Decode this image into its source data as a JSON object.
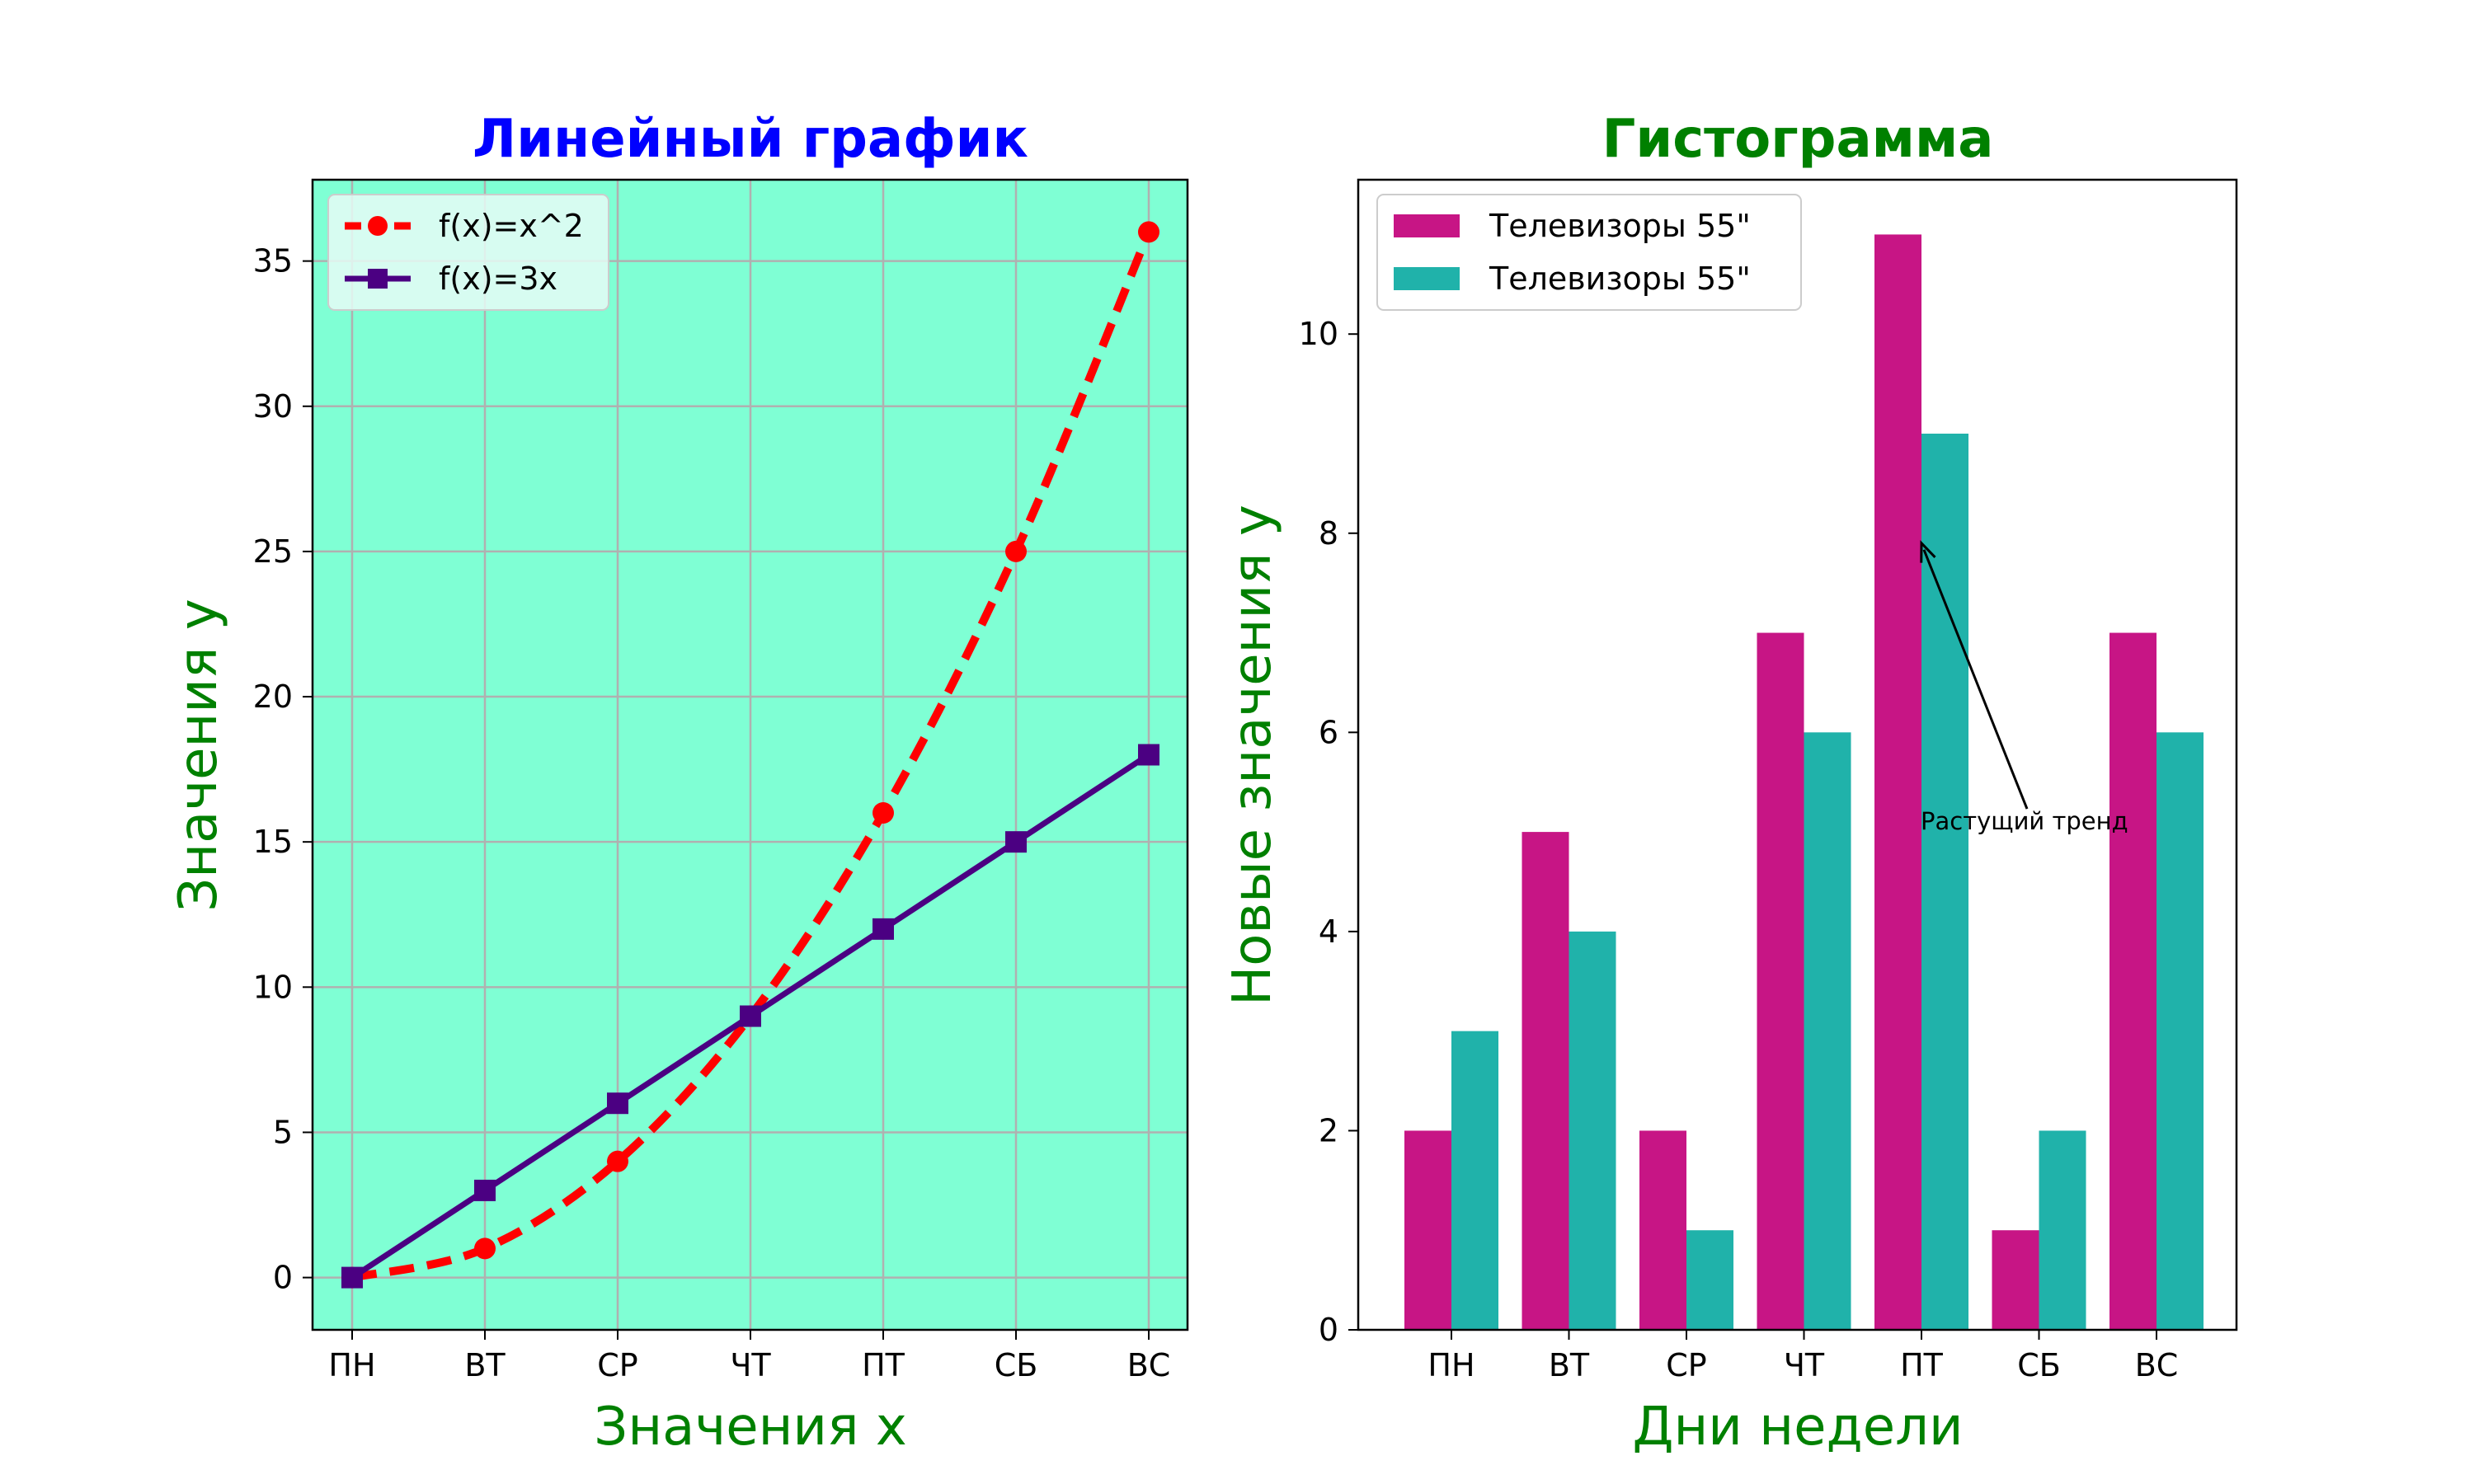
{
  "chart_data": [
    {
      "type": "line",
      "title": "Линейный график",
      "title_color": "#0000ff",
      "xlabel": "Значения x",
      "ylabel": "Значения y",
      "label_color": "#008000",
      "background": "#7fffd4",
      "grid": true,
      "legend_position": "top-left",
      "categories": [
        "ПН",
        "ВТ",
        "СР",
        "ЧТ",
        "ПТ",
        "СБ",
        "ВС"
      ],
      "ylim": [
        -1.8,
        37.8
      ],
      "yticks": [
        0,
        5,
        10,
        15,
        20,
        25,
        30,
        35
      ],
      "series": [
        {
          "name": "f(x)=x^2",
          "values": [
            0,
            1,
            4,
            9,
            16,
            25,
            36
          ],
          "color": "#ff0000",
          "style": "dashed",
          "marker": "circle"
        },
        {
          "name": "f(x)=3x",
          "values": [
            0,
            3,
            6,
            9,
            12,
            15,
            18
          ],
          "color": "#4b0082",
          "style": "solid",
          "marker": "square"
        }
      ]
    },
    {
      "type": "bar",
      "title": "Гистограмма",
      "title_color": "#008000",
      "xlabel": "Дни недели",
      "ylabel": "Новые значения y",
      "label_color": "#008000",
      "grid": false,
      "legend_position": "top-left",
      "categories": [
        "ПН",
        "ВТ",
        "СР",
        "ЧТ",
        "ПТ",
        "СБ",
        "ВС"
      ],
      "ylim": [
        0,
        11.55
      ],
      "yticks": [
        0,
        2,
        4,
        6,
        8,
        10
      ],
      "series": [
        {
          "name": "Телевизоры 55\"",
          "values": [
            2,
            5,
            2,
            7,
            11,
            1,
            7
          ],
          "color": "#c71585"
        },
        {
          "name": "Телевизоры 55\"",
          "values": [
            3,
            4,
            1,
            6,
            9,
            2,
            6
          ],
          "color": "#20b2aa"
        }
      ],
      "annotation": {
        "text": "Растущий тренд",
        "xy": [
          4,
          7.9
        ],
        "text_xy": [
          4,
          5
        ]
      }
    }
  ]
}
